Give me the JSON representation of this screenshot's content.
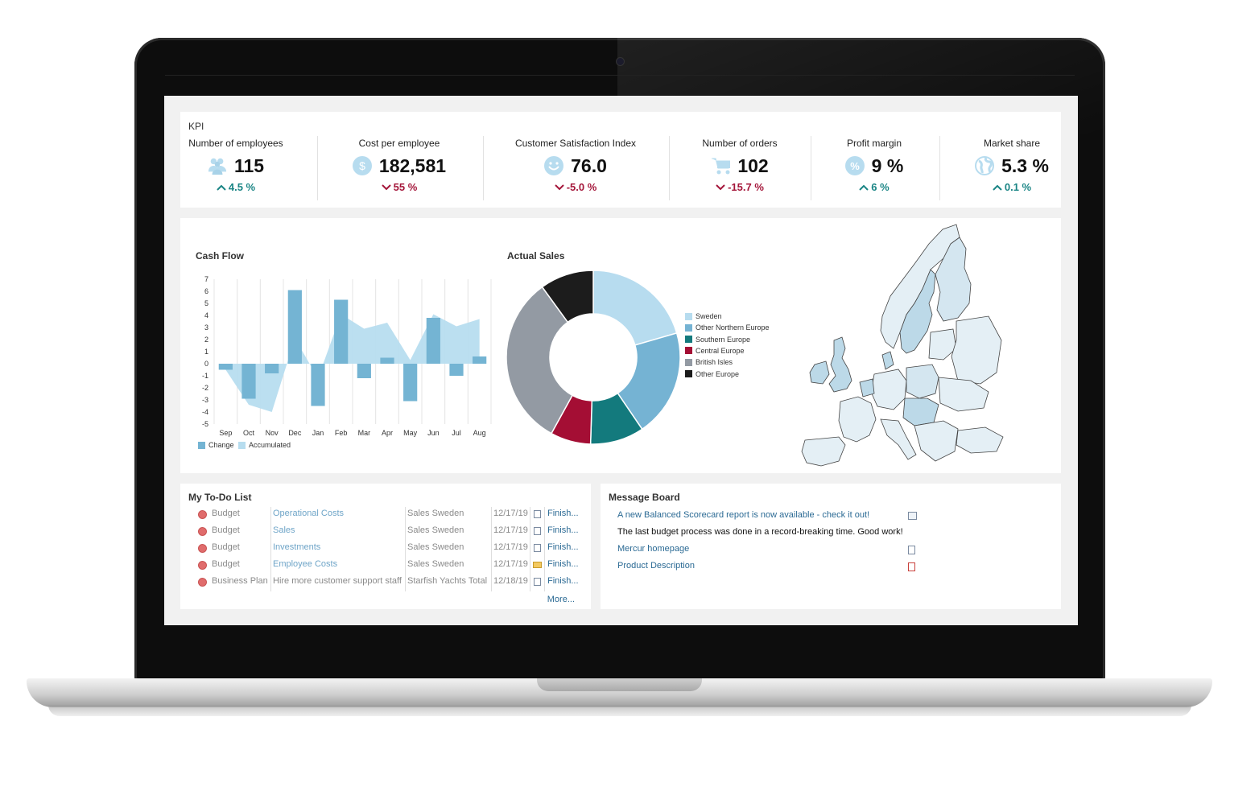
{
  "kpi": {
    "title": "KPI",
    "items": [
      {
        "label": "Number of employees",
        "value": "115",
        "change": "4.5 %",
        "direction": "up",
        "icon": "people-icon"
      },
      {
        "label": "Cost per employee",
        "value": "182,581",
        "change": "55 %",
        "direction": "down",
        "icon": "dollar-icon"
      },
      {
        "label": "Customer Satisfaction Index",
        "value": "76.0",
        "change": "-5.0 %",
        "direction": "down",
        "icon": "smiley-icon"
      },
      {
        "label": "Number of orders",
        "value": "102",
        "change": "-15.7 %",
        "direction": "down",
        "icon": "cart-icon"
      },
      {
        "label": "Profit margin",
        "value": "9 %",
        "change": "6 %",
        "direction": "up",
        "icon": "percent-icon"
      },
      {
        "label": "Market share",
        "value": "5.3 %",
        "change": "0.1 %",
        "direction": "up",
        "icon": "globe-icon"
      }
    ],
    "colors": {
      "up": "#1a8585",
      "down": "#a4163a",
      "icon": "#b7dcef"
    }
  },
  "cash_flow": {
    "title": "Cash Flow",
    "legend": {
      "change": "Change",
      "accumulated": "Accumulated"
    }
  },
  "actual_sales": {
    "title": "Actual Sales"
  },
  "chart_data": [
    {
      "type": "bar",
      "title": "Cash Flow",
      "categories": [
        "Sep",
        "Oct",
        "Nov",
        "Dec",
        "Jan",
        "Feb",
        "Mar",
        "Apr",
        "May",
        "Jun",
        "Jul",
        "Aug"
      ],
      "series": [
        {
          "name": "Change",
          "type": "bar",
          "color": "#74b4d3",
          "values": [
            -0.5,
            -2.9,
            -0.8,
            6.1,
            -3.5,
            5.3,
            -1.2,
            0.5,
            -3.1,
            3.8,
            -1.0,
            0.6
          ]
        },
        {
          "name": "Accumulated",
          "type": "area",
          "color": "#b7ddef",
          "values": [
            -0.5,
            -3.4,
            -4.0,
            2.1,
            -1.2,
            4.1,
            2.9,
            3.4,
            0.3,
            4.1,
            3.1,
            3.7
          ]
        }
      ],
      "yticks": [
        7,
        6,
        5,
        4,
        3,
        2,
        1,
        0,
        -1,
        -2,
        -3,
        -4,
        -5
      ],
      "ylim": [
        -5,
        7
      ],
      "grid": "vertical",
      "legend_position": "bottom-left"
    },
    {
      "type": "pie",
      "title": "Actual Sales",
      "donut": true,
      "labels": [
        "Sweden",
        "Other Northern Europe",
        "Southern Europe",
        "Central Europe",
        "British Isles",
        "Other Europe"
      ],
      "values": [
        20.5,
        20,
        10,
        7.5,
        32,
        10
      ],
      "colors": [
        "#b7dcef",
        "#75b3d3",
        "#137a7d",
        "#a40e34",
        "#939aa3",
        "#1c1c1c"
      ],
      "legend_position": "right"
    }
  ],
  "map": {
    "icon": "europe-map-icon",
    "fill": "#e4eff5",
    "highlight": "#bcd9e8"
  },
  "todo": {
    "title": "My To-Do List",
    "rows": [
      {
        "type": "Budget",
        "item": "Operational Costs",
        "unit": "Sales Sweden",
        "date": "12/17/19",
        "icon": "document-icon",
        "status": "Finish..."
      },
      {
        "type": "Budget",
        "item": "Sales",
        "unit": "Sales Sweden",
        "date": "12/17/19",
        "icon": "document-icon",
        "status": "Finish..."
      },
      {
        "type": "Budget",
        "item": "Investments",
        "unit": "Sales Sweden",
        "date": "12/17/19",
        "icon": "document-icon",
        "status": "Finish..."
      },
      {
        "type": "Budget",
        "item": "Employee Costs",
        "unit": "Sales Sweden",
        "date": "12/17/19",
        "icon": "folder-icon",
        "status": "Finish..."
      },
      {
        "type": "Business Plan",
        "item": "Hire more customer support staff",
        "unit": "Starfish Yachts Total",
        "date": "12/18/19",
        "icon": "document-icon",
        "status": "Finish..."
      }
    ],
    "more": "More..."
  },
  "messages": {
    "title": "Message Board",
    "items": [
      {
        "text": "A new Balanced Scorecard report is now available - check it out!",
        "kind": "link",
        "icon": "report-icon"
      },
      {
        "text": "The last budget process was done in a record-breaking time. Good work!",
        "kind": "text",
        "icon": ""
      },
      {
        "text": "Mercur homepage",
        "kind": "link",
        "icon": "page-icon"
      },
      {
        "text": "Product Description",
        "kind": "link",
        "icon": "pdf-icon"
      }
    ]
  }
}
